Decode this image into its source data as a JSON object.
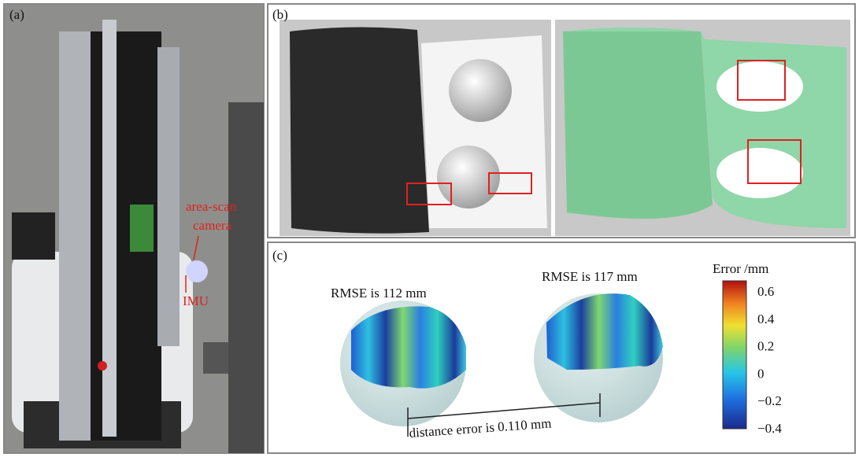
{
  "panels": {
    "a": {
      "label": "(a)",
      "annotations": {
        "camera": [
          "area-scan",
          "camera"
        ],
        "imu": "IMU"
      }
    },
    "b": {
      "label": "(b)"
    },
    "c": {
      "label": "(c)",
      "left_rmse": "RMSE is 112 mm",
      "right_rmse": "RMSE is 117 mm",
      "distance": "distance error is 0.110 mm",
      "colorbar": {
        "title": "Error /mm",
        "ticks": [
          "0.6",
          "0.4",
          "0.2",
          "0",
          "−0.2",
          "−0.4"
        ]
      }
    }
  }
}
